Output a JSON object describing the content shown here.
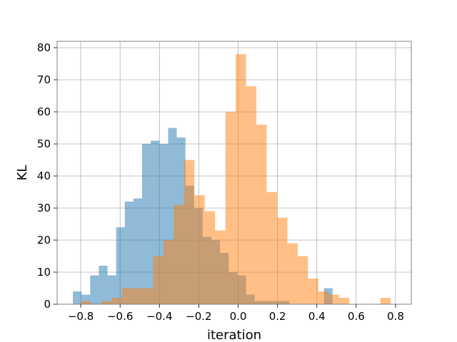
{
  "chart_data": {
    "type": "bar",
    "xlabel": "iteration",
    "ylabel": "KL",
    "xlim": [
      -0.92,
      0.88
    ],
    "ylim": [
      0,
      82
    ],
    "grid": true,
    "x_ticks": [
      -0.8,
      -0.6,
      -0.4,
      -0.2,
      0.0,
      0.2,
      0.4,
      0.6,
      0.8
    ],
    "x_tick_labels": [
      "−0.8",
      "−0.6",
      "−0.4",
      "−0.2",
      "0.0",
      "0.2",
      "0.4",
      "0.6",
      "0.8"
    ],
    "y_ticks": [
      0,
      10,
      20,
      30,
      40,
      50,
      60,
      70,
      80
    ],
    "y_tick_labels": [
      "0",
      "10",
      "20",
      "30",
      "40",
      "50",
      "60",
      "70",
      "80"
    ],
    "series": [
      {
        "color": "#1f77b4",
        "opacity": 0.5,
        "bin_edges": [
          -0.84,
          -0.796,
          -0.752,
          -0.708,
          -0.664,
          -0.62,
          -0.576,
          -0.532,
          -0.488,
          -0.444,
          -0.4,
          -0.356,
          -0.312,
          -0.268,
          -0.224,
          -0.18,
          -0.136,
          -0.092,
          -0.048,
          -0.004,
          0.04,
          0.084,
          0.128,
          0.172,
          0.216,
          0.26,
          0.304,
          0.348,
          0.392,
          0.436,
          0.48
        ],
        "counts": [
          4,
          3,
          9,
          12,
          9,
          24,
          32,
          33,
          50,
          51,
          50,
          55,
          52,
          37,
          30,
          21,
          20,
          16,
          10,
          9,
          3,
          1,
          1,
          1,
          1,
          0,
          0,
          0,
          0,
          5
        ]
      },
      {
        "color": "#ff7f0e",
        "opacity": 0.5,
        "bin_edges": [
          -0.8,
          -0.7475,
          -0.695,
          -0.6425,
          -0.59,
          -0.5375,
          -0.485,
          -0.4325,
          -0.38,
          -0.3275,
          -0.275,
          -0.2225,
          -0.17,
          -0.1175,
          -0.065,
          -0.0125,
          0.04,
          0.0925,
          0.145,
          0.1975,
          0.25,
          0.3025,
          0.355,
          0.4075,
          0.46,
          0.5125,
          0.565,
          0.6175,
          0.67,
          0.7225,
          0.775,
          0.8
        ],
        "counts": [
          1,
          0,
          1,
          2,
          5,
          5,
          5,
          15,
          20,
          31,
          45,
          34,
          29,
          23,
          60,
          78,
          68,
          56,
          35,
          27,
          19,
          15,
          8,
          4,
          3,
          2,
          0,
          0,
          0,
          2,
          0
        ]
      }
    ]
  }
}
